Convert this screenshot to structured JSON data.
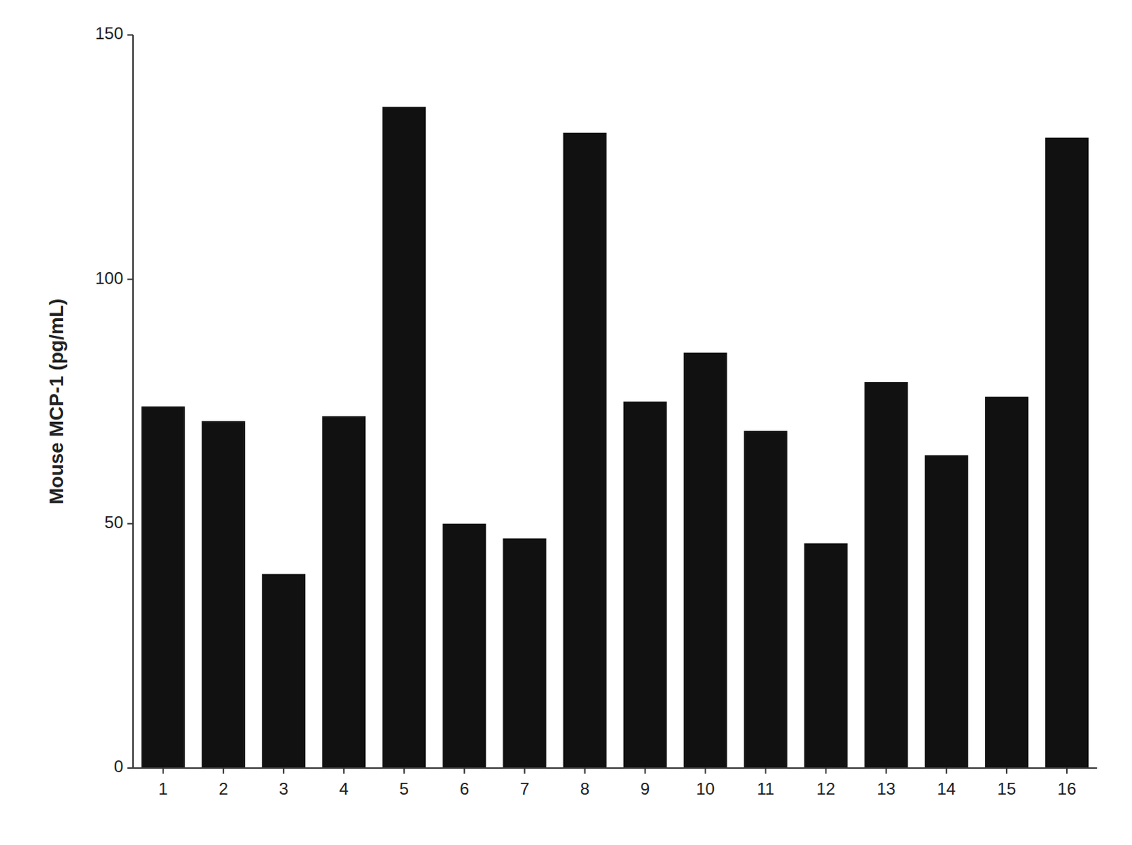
{
  "chart_data": {
    "type": "bar",
    "ylabel": "Mouse MCP-1 (pg/mL)",
    "categories": [
      1,
      2,
      3,
      4,
      5,
      6,
      7,
      8,
      9,
      10,
      11,
      12,
      13,
      14,
      15,
      16
    ],
    "values": [
      74.0,
      71.0,
      39.7,
      72.0,
      135.3,
      50.0,
      47.0,
      130.0,
      75.0,
      85.0,
      69.0,
      46.0,
      79.0,
      64.0,
      76.0,
      129.0
    ],
    "color": "#111111",
    "ylim": [
      0,
      150
    ],
    "yticks": [
      0,
      50,
      100,
      150
    ],
    "grid": false
  }
}
